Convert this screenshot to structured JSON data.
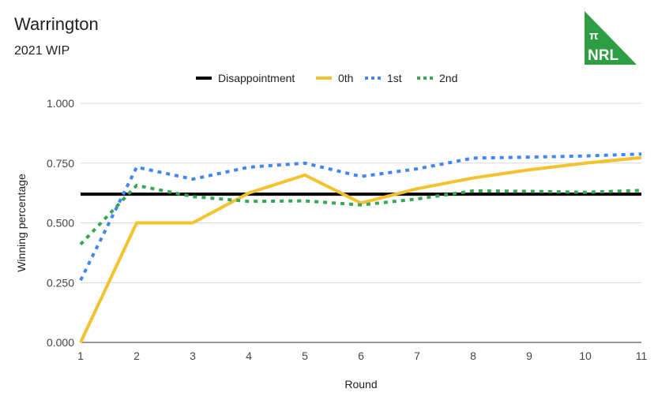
{
  "chart_data": {
    "type": "line",
    "title": "Warrington",
    "subtitle": "2021 WIP",
    "logo_text": [
      "π",
      "NRL"
    ],
    "xlabel": "Round",
    "ylabel": "Winning percentage",
    "x": [
      1,
      2,
      3,
      4,
      5,
      6,
      7,
      8,
      9,
      10,
      11
    ],
    "xlim": [
      1,
      11
    ],
    "ylim": [
      0,
      1
    ],
    "yticks": [
      "0.000",
      "0.250",
      "0.500",
      "0.750",
      "1.000"
    ],
    "ytick_values": [
      0,
      0.25,
      0.5,
      0.75,
      1
    ],
    "grid": true,
    "legend_position": "top",
    "series": [
      {
        "name": "Disappointment",
        "color": "#000000",
        "style": "solid",
        "values": [
          0.62,
          0.62,
          0.62,
          0.62,
          0.62,
          0.62,
          0.62,
          0.62,
          0.62,
          0.62,
          0.62
        ]
      },
      {
        "name": "0th",
        "color": "#f4c12f",
        "style": "solid",
        "values": [
          0,
          0.5,
          0.5,
          0.625,
          0.7,
          0.583,
          0.643,
          0.688,
          0.722,
          0.75,
          0.773
        ]
      },
      {
        "name": "1st",
        "color": "#4285f4",
        "style": "dotted",
        "values": [
          0.26,
          0.733,
          0.683,
          0.733,
          0.75,
          0.694,
          0.726,
          0.771,
          0.775,
          0.78,
          0.788
        ]
      },
      {
        "name": "2nd",
        "color": "#34a853",
        "style": "dotted",
        "values": [
          0.41,
          0.657,
          0.61,
          0.59,
          0.592,
          0.575,
          0.6,
          0.634,
          0.632,
          0.628,
          0.636
        ]
      }
    ]
  }
}
